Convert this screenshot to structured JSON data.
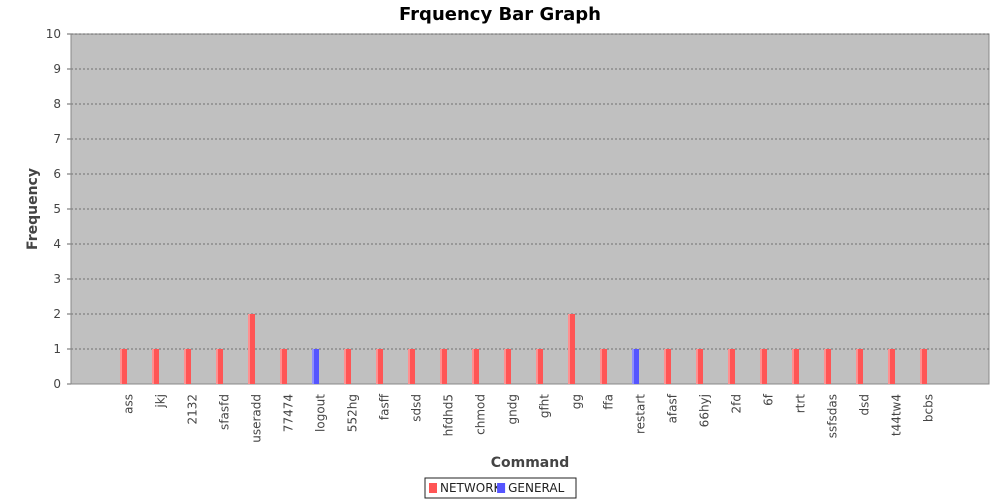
{
  "chart_data": {
    "type": "bar",
    "title": "Frquency Bar Graph",
    "xlabel": "Command",
    "ylabel": "Frequency",
    "ylim": [
      0,
      10
    ],
    "yticks": [
      0,
      1,
      2,
      3,
      4,
      5,
      6,
      7,
      8,
      9,
      10
    ],
    "grid": true,
    "legend_position": "bottom",
    "background_color": "#c0c0c0",
    "categories": [
      "ass",
      "jkj",
      "2132",
      "sfasfd",
      "useradd",
      "77474",
      "logout",
      "552hg",
      "fasff",
      "sdsd",
      "hfdhd5",
      "chmod",
      "gndg",
      "gfht",
      "gg",
      "ffa",
      "restart",
      "afasf",
      "66hyj",
      "2fd",
      "6f",
      "rtrt",
      "ssfsdas",
      "dsd",
      "t44tw4",
      "bcbs"
    ],
    "series": [
      {
        "name": "NETWORK",
        "color": "#ff5555",
        "values": [
          1,
          1,
          1,
          1,
          2,
          1,
          0,
          1,
          1,
          1,
          1,
          1,
          1,
          1,
          2,
          1,
          0,
          1,
          1,
          1,
          1,
          1,
          1,
          1,
          1,
          1
        ]
      },
      {
        "name": "GENERAL",
        "color": "#5555ff",
        "values": [
          0,
          0,
          0,
          0,
          0,
          0,
          1,
          0,
          0,
          0,
          0,
          0,
          0,
          0,
          0,
          0,
          1,
          0,
          0,
          0,
          0,
          0,
          0,
          0,
          0,
          0
        ]
      }
    ]
  }
}
